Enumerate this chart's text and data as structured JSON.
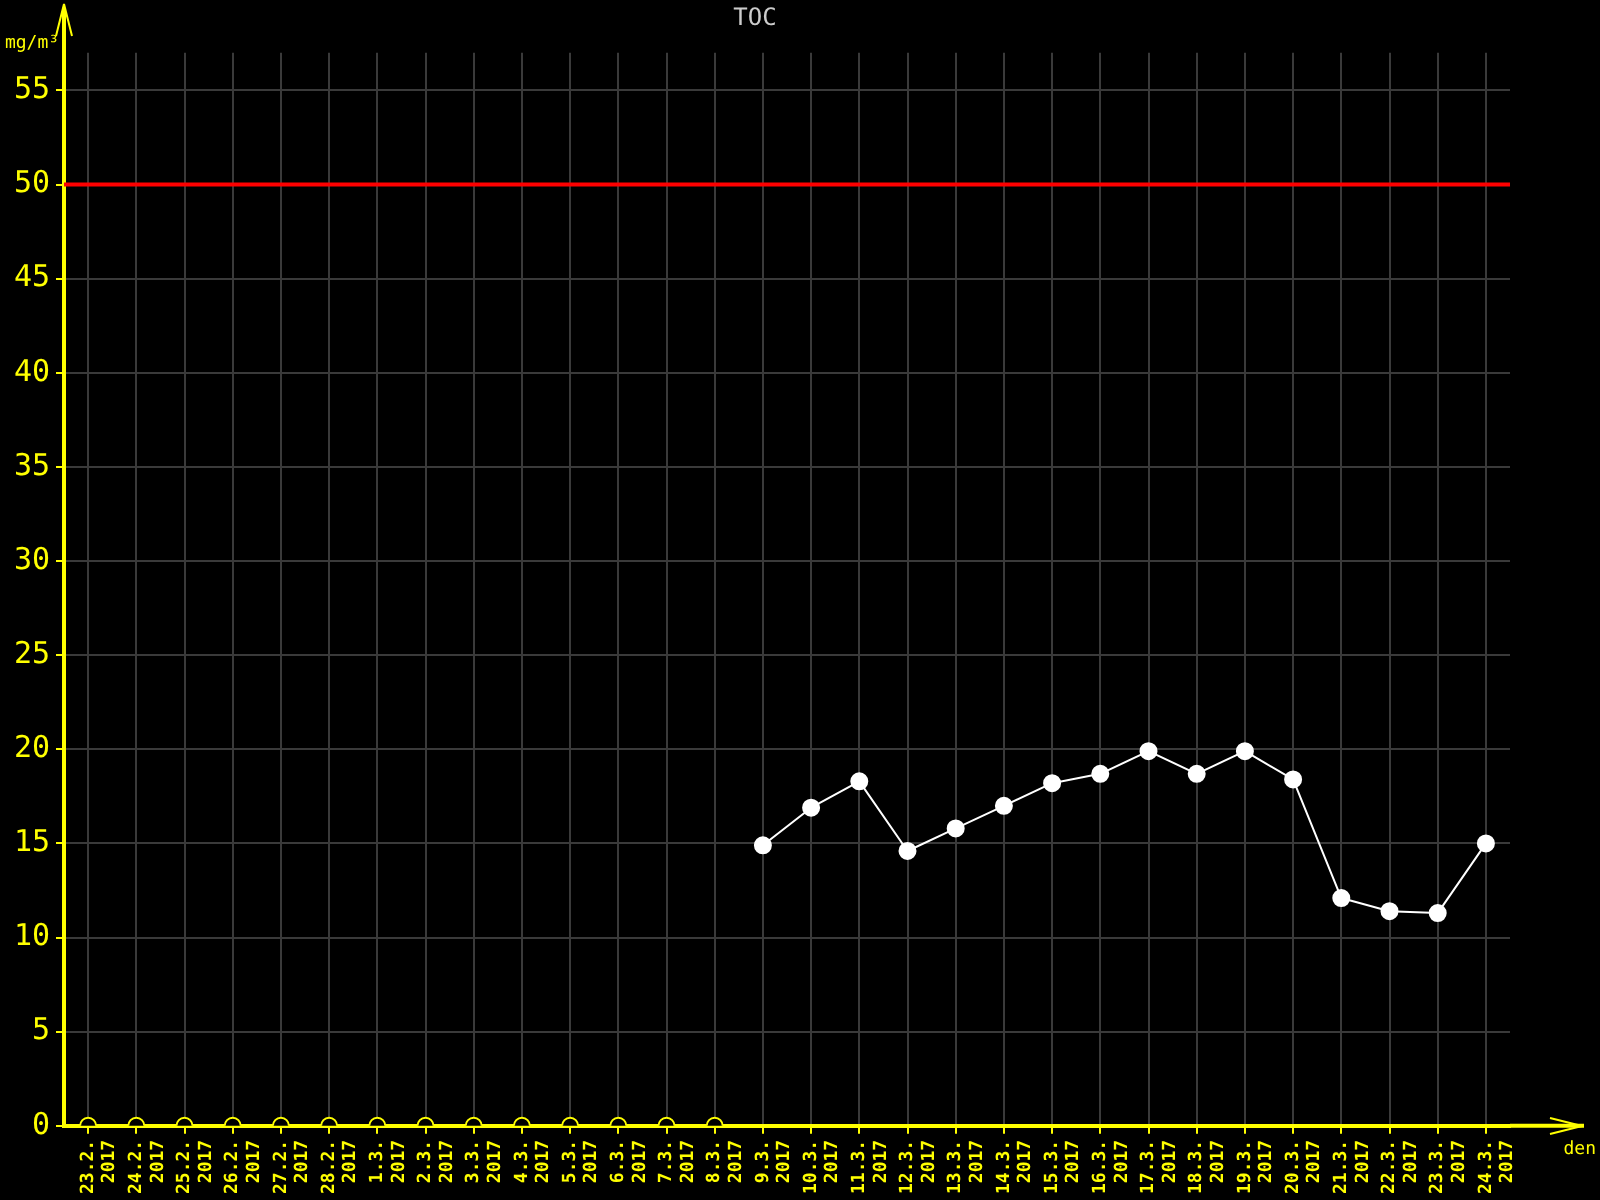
{
  "chart_data": {
    "type": "line",
    "title": "TOC",
    "ylabel": "mg/m³",
    "xlabel": "den",
    "categories": [
      "23.2.2017",
      "24.2.2017",
      "25.2.2017",
      "26.2.2017",
      "27.2.2017",
      "28.2.2017",
      "1.3.2017",
      "2.3.2017",
      "3.3.2017",
      "4.3.2017",
      "5.3.2017",
      "6.3.2017",
      "7.3.2017",
      "8.3.2017",
      "9.3.2017",
      "10.3.2017",
      "11.3.2017",
      "12.3.2017",
      "13.3.2017",
      "14.3.2017",
      "15.3.2017",
      "16.3.2017",
      "17.3.2017",
      "18.3.2017",
      "19.3.2017",
      "20.3.2017",
      "21.3.2017",
      "22.3.2017",
      "23.3.2017",
      "24.3.2017"
    ],
    "series": [
      {
        "type": "line",
        "color": "#ffffff",
        "values": [
          null,
          null,
          null,
          null,
          null,
          null,
          null,
          null,
          null,
          null,
          null,
          null,
          null,
          null,
          14.9,
          16.9,
          18.3,
          14.6,
          15.8,
          17.0,
          18.2,
          18.7,
          19.9,
          18.7,
          19.9,
          18.4,
          12.1,
          11.4,
          11.3,
          15.0
        ]
      },
      {
        "type": "scatter",
        "color": "#ffff00",
        "values": [
          0,
          0,
          0,
          0,
          0,
          0,
          0,
          0,
          0,
          0,
          0,
          0,
          0,
          0,
          null,
          null,
          null,
          null,
          null,
          null,
          null,
          null,
          null,
          null,
          null,
          null,
          null,
          null,
          null,
          null
        ]
      }
    ],
    "ylim": [
      0,
      57
    ],
    "yticks": [
      0,
      5,
      10,
      15,
      20,
      25,
      30,
      35,
      40,
      45,
      50,
      55
    ],
    "ref_lines": [
      {
        "axis": "y",
        "value": 50,
        "color": "#ff0000"
      }
    ],
    "grid": true,
    "legend": false,
    "marker": "circle",
    "line_style": "solid"
  }
}
